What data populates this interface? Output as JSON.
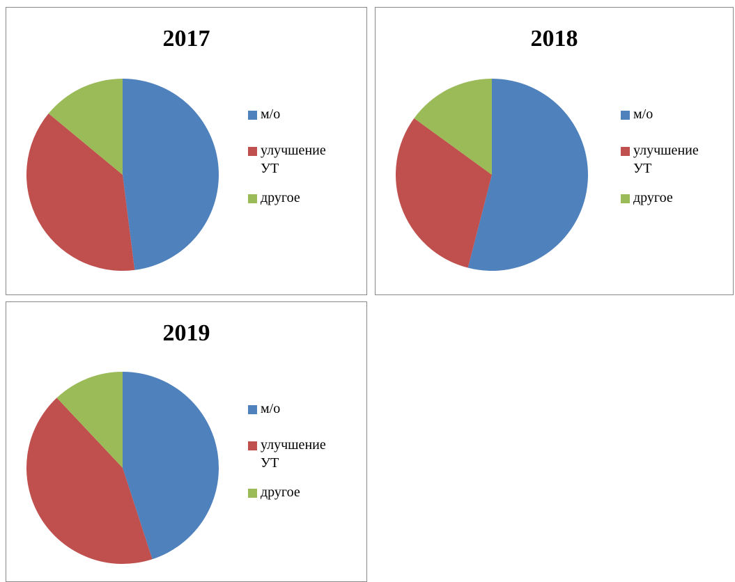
{
  "chart_data": [
    {
      "type": "pie",
      "title": "2017",
      "categories": [
        "м/о",
        "улучшение УТ",
        "другое"
      ],
      "values": [
        48,
        38,
        14
      ],
      "colors": [
        "#4f81bd",
        "#c0504d",
        "#9bbb59"
      ]
    },
    {
      "type": "pie",
      "title": "2018",
      "categories": [
        "м/о",
        "улучшение УТ",
        "другое"
      ],
      "values": [
        54,
        31,
        15
      ],
      "colors": [
        "#4f81bd",
        "#c0504d",
        "#9bbb59"
      ]
    },
    {
      "type": "pie",
      "title": "2019",
      "categories": [
        "м/о",
        "улучшение УТ",
        "другое"
      ],
      "values": [
        45,
        43,
        12
      ],
      "colors": [
        "#4f81bd",
        "#c0504d",
        "#9bbb59"
      ]
    }
  ]
}
